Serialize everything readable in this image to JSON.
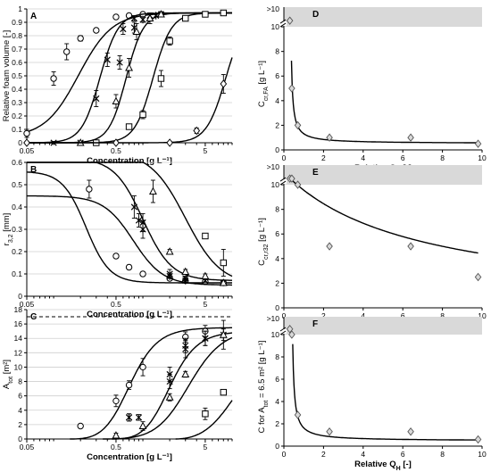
{
  "chart_data": [
    {
      "id": "A",
      "type": "scatter",
      "panel_label": "A",
      "xlabel": "Concentration [g L⁻¹]",
      "ylabel": "Relative foam volume [-]",
      "xscale": "log",
      "xlim": [
        0.05,
        10
      ],
      "ylim": [
        0,
        1
      ],
      "xticks": [
        0.05,
        0.5,
        5
      ],
      "yticks": [
        0,
        0.1,
        0.2,
        0.3,
        0.4,
        0.5,
        0.6,
        0.7,
        0.8,
        0.9,
        1
      ],
      "grid": "horizontal",
      "series": [
        {
          "marker": "circle",
          "x": [
            0.05,
            0.1,
            0.14,
            0.2,
            0.3,
            0.5,
            0.7,
            1.0
          ],
          "y": [
            0.07,
            0.48,
            0.68,
            0.78,
            0.84,
            0.94,
            0.95,
            0.96
          ],
          "err": [
            0.03,
            0.05,
            0.06,
            0.02,
            0.01,
            0.01,
            0.01,
            0.01
          ],
          "curve": [
            0.04,
            0.19,
            2.3
          ]
        },
        {
          "marker": "cross",
          "x": [
            0.1,
            0.2,
            0.3,
            0.4,
            0.6,
            0.8,
            1.2,
            1.6
          ],
          "y": [
            0.0,
            0.0,
            0.33,
            0.62,
            0.85,
            0.93,
            0.95,
            0.96
          ],
          "err": [
            0.01,
            0.01,
            0.06,
            0.05,
            0.04,
            0.02,
            0.02,
            0.01
          ],
          "curve": [
            0.0,
            0.33,
            4.2
          ]
        },
        {
          "marker": "star",
          "x": [
            0.55,
            0.8,
            1.0,
            1.4
          ],
          "y": [
            0.6,
            0.86,
            0.92,
            0.95
          ],
          "err": [
            0.05,
            0.04,
            0.02,
            0.01
          ],
          "curve": null
        },
        {
          "marker": "triangle",
          "x": [
            0.2,
            0.5,
            0.7,
            0.85,
            1.2,
            1.6
          ],
          "y": [
            0.0,
            0.31,
            0.56,
            0.83,
            0.93,
            0.96
          ],
          "err": [
            0.01,
            0.05,
            0.07,
            0.06,
            0.04,
            0.02
          ],
          "curve": [
            0.0,
            0.65,
            4.5
          ]
        },
        {
          "marker": "square",
          "x": [
            0.3,
            0.7,
            1.0,
            1.6,
            2.0,
            3.0,
            5.0,
            8.0
          ],
          "y": [
            0.0,
            0.12,
            0.21,
            0.48,
            0.76,
            0.93,
            0.96,
            0.97
          ],
          "err": [
            0.01,
            0.02,
            0.03,
            0.06,
            0.03,
            0.02,
            0.01,
            0.01
          ],
          "curve": [
            0.0,
            1.3,
            4.2
          ]
        },
        {
          "marker": "diamond",
          "x": [
            0.05,
            0.5,
            2.0,
            4.0,
            8.0
          ],
          "y": [
            0.0,
            0.0,
            0.0,
            0.09,
            0.44
          ],
          "err": [
            0.01,
            0.01,
            0.01,
            0.02,
            0.07
          ],
          "curve": [
            0.0,
            8.5,
            4.0
          ]
        }
      ]
    },
    {
      "id": "B",
      "type": "scatter",
      "panel_label": "B",
      "xlabel": "Concentration [g L⁻¹]",
      "ylabel": "r3,2 [mm]",
      "ylabel_main": "r",
      "ylabel_sub": "3,2",
      "ylabel_unit": " [mm]",
      "xscale": "log",
      "xlim": [
        0.05,
        10
      ],
      "ylim": [
        0,
        0.6
      ],
      "xticks": [
        0.05,
        0.5,
        5
      ],
      "yticks": [
        0,
        0.1,
        0.2,
        0.3,
        0.4,
        0.5,
        0.6
      ],
      "grid": "horizontal",
      "series": [
        {
          "marker": "circle",
          "x": [
            0.25,
            0.5,
            0.7,
            1.0,
            2.0,
            3.0,
            5.0,
            8.0
          ],
          "y": [
            0.48,
            0.18,
            0.13,
            0.1,
            0.08,
            0.07,
            0.065,
            0.06
          ],
          "err": [
            0.04,
            0.01,
            0.01,
            0.01,
            0.01,
            0.01,
            0.01,
            0.01
          ],
          "curve": [
            0.06,
            0.5,
            0.23,
            3.3
          ]
        },
        {
          "marker": "cross",
          "x": [
            0.8,
            1.0,
            2.0,
            3.0,
            5.0,
            8.0
          ],
          "y": [
            0.4,
            0.33,
            0.1,
            0.08,
            0.07,
            0.06
          ],
          "err": [
            0.05,
            0.04,
            0.02,
            0.01,
            0.01,
            0.01
          ],
          "curve": [
            0.05,
            0.4,
            0.78,
            2.6
          ]
        },
        {
          "marker": "star",
          "x": [
            0.9,
            1.0,
            2.0,
            3.0
          ],
          "y": [
            0.34,
            0.3,
            0.09,
            0.07
          ],
          "err": [
            0.03,
            0.04,
            0.01,
            0.01
          ],
          "curve": null
        },
        {
          "marker": "triangle",
          "x": [
            1.3,
            2.0,
            3.0,
            5.0,
            8.0
          ],
          "y": [
            0.47,
            0.2,
            0.11,
            0.09,
            0.06
          ],
          "err": [
            0.05,
            0.01,
            0.01,
            0.01,
            0.01
          ],
          "curve": [
            0.07,
            0.55,
            1.0,
            2.7
          ]
        },
        {
          "marker": "square",
          "x": [
            5.0,
            8.0
          ],
          "y": [
            0.27,
            0.15
          ],
          "err": [
            0.01,
            0.06
          ],
          "curve": [
            0.05,
            0.6,
            3.0,
            2.2
          ]
        }
      ]
    },
    {
      "id": "C",
      "type": "scatter",
      "panel_label": "C",
      "xlabel": "Concentration [g L⁻¹]",
      "ylabel": "Atot [m²]",
      "ylabel_main": "A",
      "ylabel_sub": "tot",
      "ylabel_unit": " [m²]",
      "xscale": "log",
      "xlim": [
        0.05,
        10
      ],
      "ylim": [
        0,
        18
      ],
      "xticks": [
        0.05,
        0.5,
        5
      ],
      "yticks": [
        0,
        2,
        4,
        6,
        8,
        10,
        12,
        14,
        16,
        18
      ],
      "reference_line": 17,
      "grid": "horizontal",
      "series": [
        {
          "marker": "circle",
          "x": [
            0.2,
            0.5,
            0.7,
            1.0,
            3.0,
            5.0
          ],
          "y": [
            1.8,
            5.3,
            7.5,
            10.0,
            14.2,
            15.0
          ],
          "err": [
            0.2,
            0.8,
            0.6,
            1.2,
            0.7,
            0.8
          ],
          "curve": [
            0.15,
            15.5,
            0.58,
            2.3
          ]
        },
        {
          "marker": "cross",
          "x": [
            0.7,
            0.9,
            2.0,
            3.0,
            5.0,
            8.0
          ],
          "y": [
            3.0,
            3.0,
            9.0,
            12.5,
            14.0,
            14.5
          ],
          "err": [
            0.5,
            0.4,
            1.0,
            1.2,
            1.0,
            0.8
          ],
          "curve": [
            0.45,
            15.0,
            1.6,
            2.3
          ]
        },
        {
          "marker": "star",
          "x": [
            0.7,
            2.0,
            3.0,
            5.0
          ],
          "y": [
            3.0,
            8.0,
            13.0,
            14.0
          ],
          "err": [
            0.5,
            1.0,
            1.0,
            1.0
          ],
          "curve": null
        },
        {
          "marker": "triangle",
          "x": [
            0.5,
            1.0,
            2.0,
            3.0,
            8.0
          ],
          "y": [
            0.5,
            1.8,
            5.8,
            9.0,
            14.5
          ],
          "err": [
            0.3,
            0.6,
            0.5,
            0.4,
            2.0
          ],
          "curve": [
            0.35,
            15.3,
            3.0,
            2.1
          ]
        },
        {
          "marker": "square",
          "x": [
            5.0,
            8.0
          ],
          "y": [
            3.5,
            6.5
          ],
          "err": [
            0.8,
            0.3
          ],
          "curve": [
            2.3,
            14.0,
            10.0,
            1.8
          ]
        }
      ]
    },
    {
      "id": "D",
      "type": "scatter",
      "panel_label": "D",
      "xlabel": "Relative QH [-]",
      "ylabel": "Ccr,FA [g L⁻¹]",
      "ylabel_main": "C",
      "ylabel_sub": "cr,FA",
      "ylabel_unit": " [g L⁻¹]",
      "xlim": [
        0,
        10
      ],
      "ylim": [
        0,
        10
      ],
      "xticks": [
        0,
        2,
        4,
        6,
        8,
        10
      ],
      "yticks": [
        0,
        2,
        4,
        6,
        8,
        10
      ],
      "overflow_label": ">10",
      "points": {
        "x": [
          0.3,
          0.4,
          0.7,
          2.3,
          6.4,
          9.8
        ],
        "y": [
          10.5,
          5.0,
          2.0,
          1.0,
          1.0,
          0.5
        ]
      },
      "curve": {
        "a": 0.56,
        "b": 0.52,
        "c": 0.3
      }
    },
    {
      "id": "E",
      "type": "scatter",
      "panel_label": "E",
      "xlabel": "Relative QH [-]",
      "ylabel": "Ccr,r32 [g L⁻¹]",
      "ylabel_main": "C",
      "ylabel_sub": "cr,r32",
      "ylabel_unit": " [g L⁻¹]",
      "xlim": [
        0,
        10
      ],
      "ylim": [
        0,
        10
      ],
      "xticks": [
        0,
        2,
        4,
        6,
        8,
        10
      ],
      "yticks": [
        0,
        2,
        4,
        6,
        8,
        10
      ],
      "overflow_label": ">10",
      "points": {
        "x": [
          0.3,
          0.4,
          0.7,
          2.3,
          6.4,
          9.8
        ],
        "y": [
          10.5,
          10.5,
          10.0,
          5.0,
          5.0,
          2.5
        ]
      },
      "curve": {
        "a": 11.0,
        "b": 0.0,
        "c": 0.1,
        "d": 0.15
      }
    },
    {
      "id": "F",
      "type": "scatter",
      "panel_label": "F",
      "xlabel": "Relative QH [-]",
      "ylabel": "C for Atot = 6.5 m² [g L⁻¹]",
      "ylabel_main": "C for A",
      "ylabel_sub": "tot",
      "ylabel_unit": " = 6.5 m² [g L⁻¹]",
      "xlim": [
        0,
        10
      ],
      "ylim": [
        0,
        10
      ],
      "xticks": [
        0,
        2,
        4,
        6,
        8,
        10
      ],
      "yticks": [
        0,
        2,
        4,
        6,
        8,
        10
      ],
      "overflow_label": ">10",
      "points": {
        "x": [
          0.3,
          0.4,
          0.7,
          2.3,
          6.4,
          9.8
        ],
        "y": [
          10.5,
          10.0,
          2.8,
          1.3,
          1.3,
          0.6
        ]
      },
      "curve": {
        "a": 0.75,
        "b": 0.47,
        "c": 0.36
      }
    }
  ]
}
